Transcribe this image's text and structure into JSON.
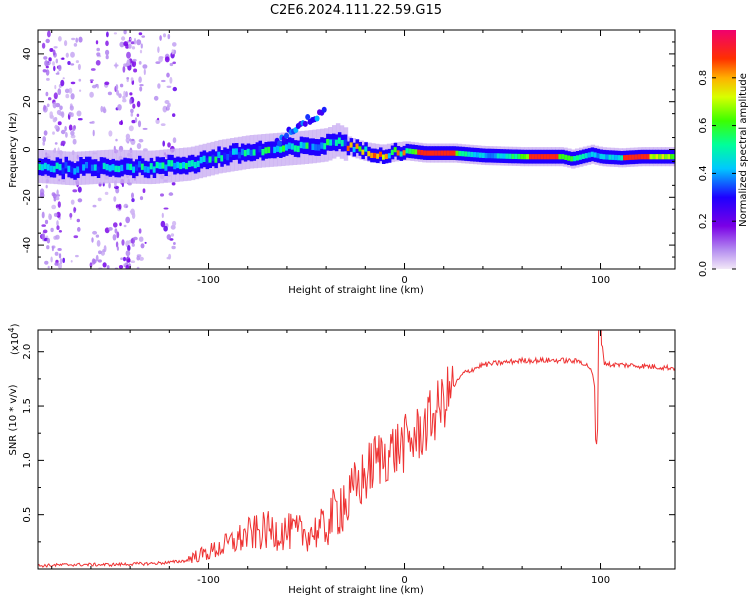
{
  "title": "C2E6.2024.111.22.59.G15",
  "chart_data": [
    {
      "type": "heatmap",
      "title": "C2E6.2024.111.22.59.G15",
      "xlabel": "Height of straight line (km)",
      "ylabel": "Frequency (Hz)",
      "xlim": [
        -187,
        138
      ],
      "ylim": [
        -50,
        50
      ],
      "x_ticks": [
        -100,
        0,
        100
      ],
      "x_tick_labels": [
        "-100",
        "0",
        "100"
      ],
      "y_ticks": [
        -40,
        -20,
        0,
        20,
        40
      ],
      "y_tick_labels": [
        "-40",
        "-20",
        "0",
        "20",
        "40"
      ],
      "ridge_centerline": {
        "x": [
          -187,
          -170,
          -150,
          -130,
          -110,
          -95,
          -80,
          -65,
          -50,
          -40,
          -35,
          -28,
          -20,
          -12,
          -5,
          0,
          10,
          25,
          40,
          60,
          70,
          80,
          85,
          90,
          95,
          100,
          110,
          120,
          138
        ],
        "y": [
          -7,
          -8,
          -7,
          -7.5,
          -6,
          -3,
          -1,
          0,
          1,
          2,
          4,
          1,
          -1,
          -2,
          -1,
          -0.5,
          -1.5,
          -1.5,
          -2.5,
          -3,
          -3,
          -3,
          -4,
          -3,
          -2,
          -3,
          -3.5,
          -3,
          -3
        ]
      },
      "branch": {
        "x": [
          -65,
          -58,
          -50,
          -45,
          -40
        ],
        "y": [
          3,
          8,
          12,
          14,
          18
        ]
      },
      "colorbar": {
        "label": "Normalized spectral amplitude",
        "range": [
          0.0,
          1.0
        ],
        "ticks": [
          0.0,
          0.2,
          0.4,
          0.6,
          0.8
        ],
        "tick_labels": [
          "0.0",
          "0.2",
          "0.4",
          "0.6",
          "0.8"
        ]
      }
    },
    {
      "type": "line",
      "xlabel": "Height of straight line (km)",
      "ylabel": "SNR (10 * v/v)",
      "y_scale_label": "(x10",
      "y_scale_exp": "4",
      "y_scale_close": ")",
      "xlim": [
        -187,
        138
      ],
      "ylim": [
        0,
        2.2
      ],
      "x_ticks": [
        -100,
        0,
        100
      ],
      "x_tick_labels": [
        "-100",
        "0",
        "100"
      ],
      "y_ticks": [
        0.5,
        1.0,
        1.5,
        2.0
      ],
      "y_tick_labels": [
        "0.5",
        "1.0",
        "1.5",
        "2.0"
      ],
      "series": [
        {
          "name": "SNR",
          "color": "#ee3333",
          "x": [
            -187,
            -170,
            -150,
            -130,
            -120,
            -110,
            -100,
            -90,
            -80,
            -70,
            -60,
            -50,
            -40,
            -30,
            -25,
            -20,
            -15,
            -10,
            -5,
            0,
            5,
            10,
            15,
            20,
            25,
            30,
            40,
            50,
            60,
            70,
            80,
            90,
            95,
            98,
            100,
            102,
            105,
            110,
            120,
            138
          ],
          "y": [
            0.03,
            0.04,
            0.04,
            0.05,
            0.06,
            0.08,
            0.12,
            0.18,
            0.25,
            0.28,
            0.27,
            0.26,
            0.3,
            0.55,
            0.75,
            0.85,
            1.0,
            1.05,
            1.1,
            1.15,
            1.2,
            1.3,
            1.42,
            1.55,
            1.68,
            1.8,
            1.88,
            1.9,
            1.92,
            1.92,
            1.92,
            1.91,
            1.85,
            1.6,
            2.15,
            1.9,
            1.88,
            1.88,
            1.87,
            1.85
          ]
        }
      ]
    }
  ]
}
